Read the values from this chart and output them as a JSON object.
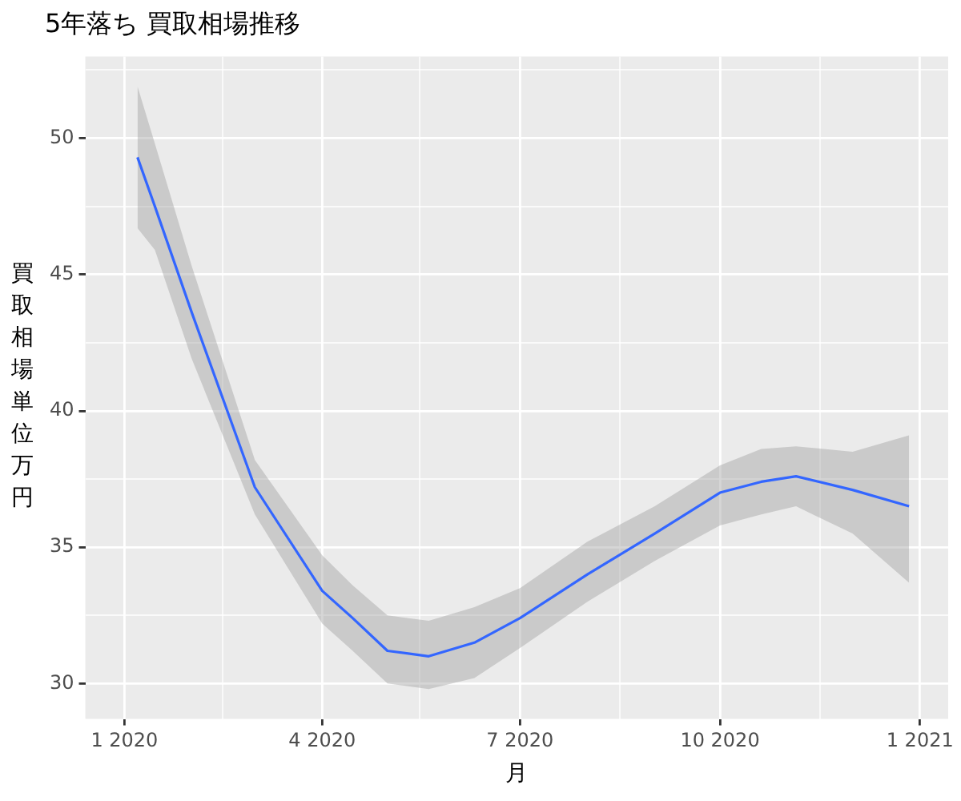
{
  "chart_data": {
    "type": "line",
    "title": "5年落ち 買取相場推移",
    "xlabel": "月",
    "ylabel": "買取相場単位万円",
    "x": [
      "2020-01-07",
      "2020-01-15",
      "2020-02-01",
      "2020-03-01",
      "2020-04-01",
      "2020-04-15",
      "2020-05-01",
      "2020-05-20",
      "2020-06-10",
      "2020-07-01",
      "2020-08-01",
      "2020-09-01",
      "2020-10-01",
      "2020-10-20",
      "2020-11-05",
      "2020-12-01",
      "2020-12-27"
    ],
    "series": [
      {
        "color": "#3366ff",
        "values": [
          49.3,
          47.5,
          43.6,
          37.2,
          33.4,
          32.4,
          31.2,
          31.0,
          31.5,
          32.4,
          34.0,
          35.5,
          37.0,
          37.4,
          37.6,
          37.1,
          36.5
        ],
        "lower": [
          46.7,
          45.9,
          41.9,
          36.2,
          32.2,
          31.2,
          30.0,
          29.8,
          30.2,
          31.3,
          33.0,
          34.5,
          35.8,
          36.2,
          36.5,
          35.5,
          33.7
        ],
        "upper": [
          51.9,
          49.8,
          45.3,
          38.2,
          34.7,
          33.6,
          32.5,
          32.3,
          32.8,
          33.5,
          35.2,
          36.5,
          38.0,
          38.6,
          38.7,
          38.5,
          39.1
        ]
      }
    ],
    "xlim": [
      "2019-12-14",
      "2021-01-14"
    ],
    "xticks": [
      {
        "value": "2020-01-01",
        "label": "1 2020"
      },
      {
        "value": "2020-02-15",
        "label": null
      },
      {
        "value": "2020-04-01",
        "label": "4 2020"
      },
      {
        "value": "2020-05-16",
        "label": null
      },
      {
        "value": "2020-07-01",
        "label": "7 2020"
      },
      {
        "value": "2020-08-16",
        "label": null
      },
      {
        "value": "2020-10-01",
        "label": "10 2020"
      },
      {
        "value": "2020-11-16",
        "label": null
      },
      {
        "value": "2021-01-01",
        "label": "1 2021"
      }
    ],
    "ylim": [
      28.7,
      53.0
    ],
    "yticks": [
      30,
      {
        "value": 32.5,
        "label": null
      },
      35,
      {
        "value": 37.5,
        "label": null
      },
      40,
      {
        "value": 42.5,
        "label": null
      },
      45,
      {
        "value": 47.5,
        "label": null
      },
      50,
      {
        "value": 52.5,
        "label": null
      }
    ],
    "grid": true,
    "legend": false,
    "marker": "none",
    "line_style": "solid"
  }
}
